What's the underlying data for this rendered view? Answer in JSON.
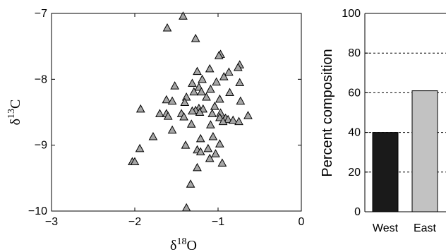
{
  "chart_data": [
    {
      "type": "scatter",
      "xlabel": {
        "prefix": "δ",
        "sup": "18",
        "base": "O"
      },
      "ylabel": {
        "prefix": "δ",
        "sup": "13",
        "base": "C"
      },
      "xlim": [
        -3,
        0
      ],
      "ylim": [
        -10,
        -7
      ],
      "xticks": [
        "−3",
        "−2",
        "−1",
        "0"
      ],
      "yticks": [
        "−10",
        "−9",
        "−8",
        "−7"
      ],
      "marker": "triangle",
      "marker_fill": "#a6a6a6",
      "points": [
        [
          -1.42,
          -7.04
        ],
        [
          -1.61,
          -7.22
        ],
        [
          -1.27,
          -7.38
        ],
        [
          -0.97,
          -7.62
        ],
        [
          -0.99,
          -7.64
        ],
        [
          -0.74,
          -7.78
        ],
        [
          -0.76,
          -7.82
        ],
        [
          -1.25,
          -7.88
        ],
        [
          -1.1,
          -7.84
        ],
        [
          -0.87,
          -7.89
        ],
        [
          -0.93,
          -7.96
        ],
        [
          -1.19,
          -8.0
        ],
        [
          -1.02,
          -8.04
        ],
        [
          -0.74,
          -8.05
        ],
        [
          -1.31,
          -8.06
        ],
        [
          -1.52,
          -8.1
        ],
        [
          -1.23,
          -8.12
        ],
        [
          -1.09,
          -8.15
        ],
        [
          -1.29,
          -8.19
        ],
        [
          -1.2,
          -8.19
        ],
        [
          -0.86,
          -8.2
        ],
        [
          -1.38,
          -8.27
        ],
        [
          -1.14,
          -8.27
        ],
        [
          -0.98,
          -8.3
        ],
        [
          -1.62,
          -8.31
        ],
        [
          -1.55,
          -8.33
        ],
        [
          -0.73,
          -8.33
        ],
        [
          -1.4,
          -8.35
        ],
        [
          -1.04,
          -8.41
        ],
        [
          -1.23,
          -8.44
        ],
        [
          -1.93,
          -8.45
        ],
        [
          -1.18,
          -8.45
        ],
        [
          -1.27,
          -8.47
        ],
        [
          -1.31,
          -8.48
        ],
        [
          -1.22,
          -8.5
        ],
        [
          -0.97,
          -8.51
        ],
        [
          -1.7,
          -8.52
        ],
        [
          -1.62,
          -8.52
        ],
        [
          -1.44,
          -8.52
        ],
        [
          -1.07,
          -8.52
        ],
        [
          -0.64,
          -8.55
        ],
        [
          -1.6,
          -8.56
        ],
        [
          -1.41,
          -8.57
        ],
        [
          -0.98,
          -8.58
        ],
        [
          -0.91,
          -8.59
        ],
        [
          -0.88,
          -8.61
        ],
        [
          -0.82,
          -8.62
        ],
        [
          -0.75,
          -8.64
        ],
        [
          -0.94,
          -8.64
        ],
        [
          -1.32,
          -8.68
        ],
        [
          -1.09,
          -8.69
        ],
        [
          -1.55,
          -8.77
        ],
        [
          -1.78,
          -8.87
        ],
        [
          -1.06,
          -8.87
        ],
        [
          -1.21,
          -8.9
        ],
        [
          -0.98,
          -8.98
        ],
        [
          -1.39,
          -9.0
        ],
        [
          -1.94,
          -9.05
        ],
        [
          -1.12,
          -9.05
        ],
        [
          -1.25,
          -9.07
        ],
        [
          -1.21,
          -9.1
        ],
        [
          -1.03,
          -9.13
        ],
        [
          -1.1,
          -9.2
        ],
        [
          -2.03,
          -9.25
        ],
        [
          -2.0,
          -9.25
        ],
        [
          -0.95,
          -9.27
        ],
        [
          -1.25,
          -9.34
        ],
        [
          -1.33,
          -9.59
        ],
        [
          -1.38,
          -9.95
        ]
      ]
    },
    {
      "type": "bar",
      "ylabel": "Percent composition",
      "categories": [
        "West",
        "East"
      ],
      "values": [
        40,
        61
      ],
      "ylim": [
        0,
        100
      ],
      "yticks": [
        "0",
        "20",
        "40",
        "60",
        "80",
        "100"
      ],
      "colors": [
        "#1a1a1a",
        "#c2c2c2"
      ],
      "gridlines": [
        20,
        40,
        60,
        80
      ],
      "gridline_style": "dashed"
    }
  ]
}
